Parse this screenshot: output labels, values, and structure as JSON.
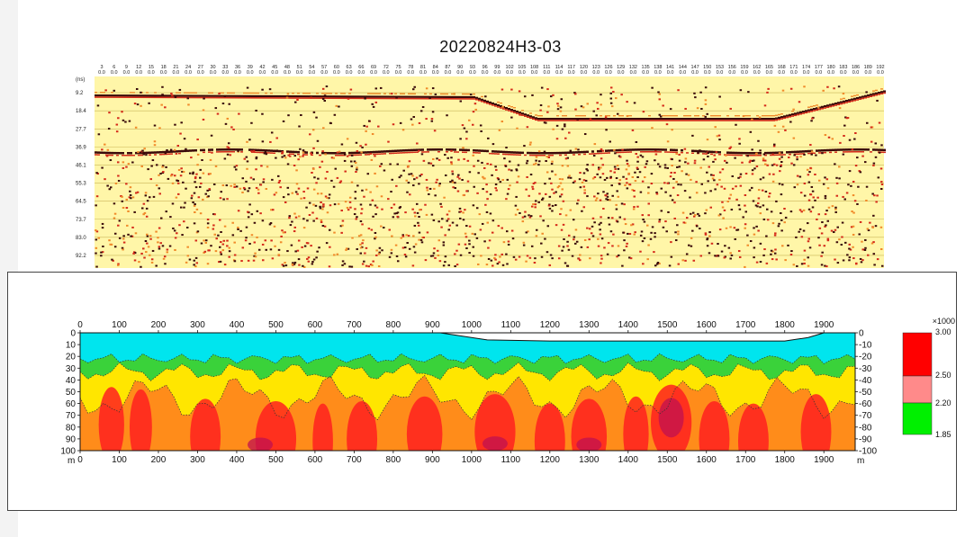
{
  "title": "20220824H3-03",
  "chart_data": [
    {
      "type": "heatmap",
      "description_kind": "ground penetrating radar profile",
      "top_axis_ticks": [
        "3",
        "6",
        "9",
        "12",
        "15",
        "18",
        "21",
        "24",
        "27",
        "30",
        "33",
        "36",
        "39",
        "42",
        "45",
        "48",
        "51",
        "54",
        "57",
        "60",
        "63",
        "66",
        "69",
        "72",
        "75",
        "78",
        "81",
        "84",
        "87",
        "90",
        "93",
        "96",
        "99",
        "102",
        "105",
        "108",
        "111",
        "114",
        "117",
        "120",
        "123",
        "126",
        "129",
        "132",
        "135",
        "138",
        "141",
        "144",
        "147",
        "150",
        "153",
        "156",
        "159",
        "162",
        "165",
        "168",
        "171",
        "174",
        "177",
        "180",
        "183",
        "186",
        "189",
        "192"
      ],
      "top_axis_subtick": "0.0",
      "y_unit": "(ns)",
      "y_ticks": [
        "9.2",
        "18.4",
        "27.7",
        "36.9",
        "46.1",
        "55.3",
        "64.5",
        "73.7",
        "83.0",
        "92.2"
      ],
      "colors": {
        "background": "#fff6a8",
        "dark": "#3a0a0a",
        "red": "#d42a1a",
        "orange": "#f08a2a"
      }
    },
    {
      "type": "heatmap",
      "description_kind": "resistivity section",
      "x_ticks": [
        0,
        100,
        200,
        300,
        400,
        500,
        600,
        700,
        800,
        900,
        1000,
        1100,
        1200,
        1300,
        1400,
        1500,
        1600,
        1700,
        1800,
        1900
      ],
      "x_unit": "m",
      "xlim": [
        0,
        1980
      ],
      "y_ticks": [
        0,
        10,
        20,
        30,
        40,
        50,
        60,
        70,
        80,
        90,
        100
      ],
      "y_unit": "m",
      "ylim": [
        0,
        100
      ],
      "surface_depth": [
        [
          0,
          8
        ],
        [
          100,
          8
        ],
        [
          200,
          7
        ],
        [
          300,
          7
        ],
        [
          400,
          7
        ],
        [
          500,
          7
        ],
        [
          600,
          7
        ],
        [
          700,
          7
        ],
        [
          800,
          7
        ],
        [
          900,
          7
        ],
        [
          960,
          10
        ],
        [
          1040,
          14
        ],
        [
          1200,
          15
        ],
        [
          1400,
          15
        ],
        [
          1500,
          15
        ],
        [
          1600,
          15
        ],
        [
          1700,
          15
        ],
        [
          1800,
          15
        ],
        [
          1860,
          12
        ],
        [
          1900,
          8
        ],
        [
          1980,
          8
        ]
      ],
      "colors": {
        "water": "#00e5ee",
        "green": "#3ad23a",
        "yellow": "#ffe600",
        "orange": "#ff8c1a",
        "red": "#ff2020",
        "deep": "#c01050"
      }
    }
  ],
  "colorbar": {
    "multiplier": "×1000",
    "labels": [
      "3.00",
      "2.50",
      "2.20",
      "1.85"
    ],
    "colors": [
      "#ff0000",
      "#ff8a8a",
      "#00f000"
    ]
  }
}
